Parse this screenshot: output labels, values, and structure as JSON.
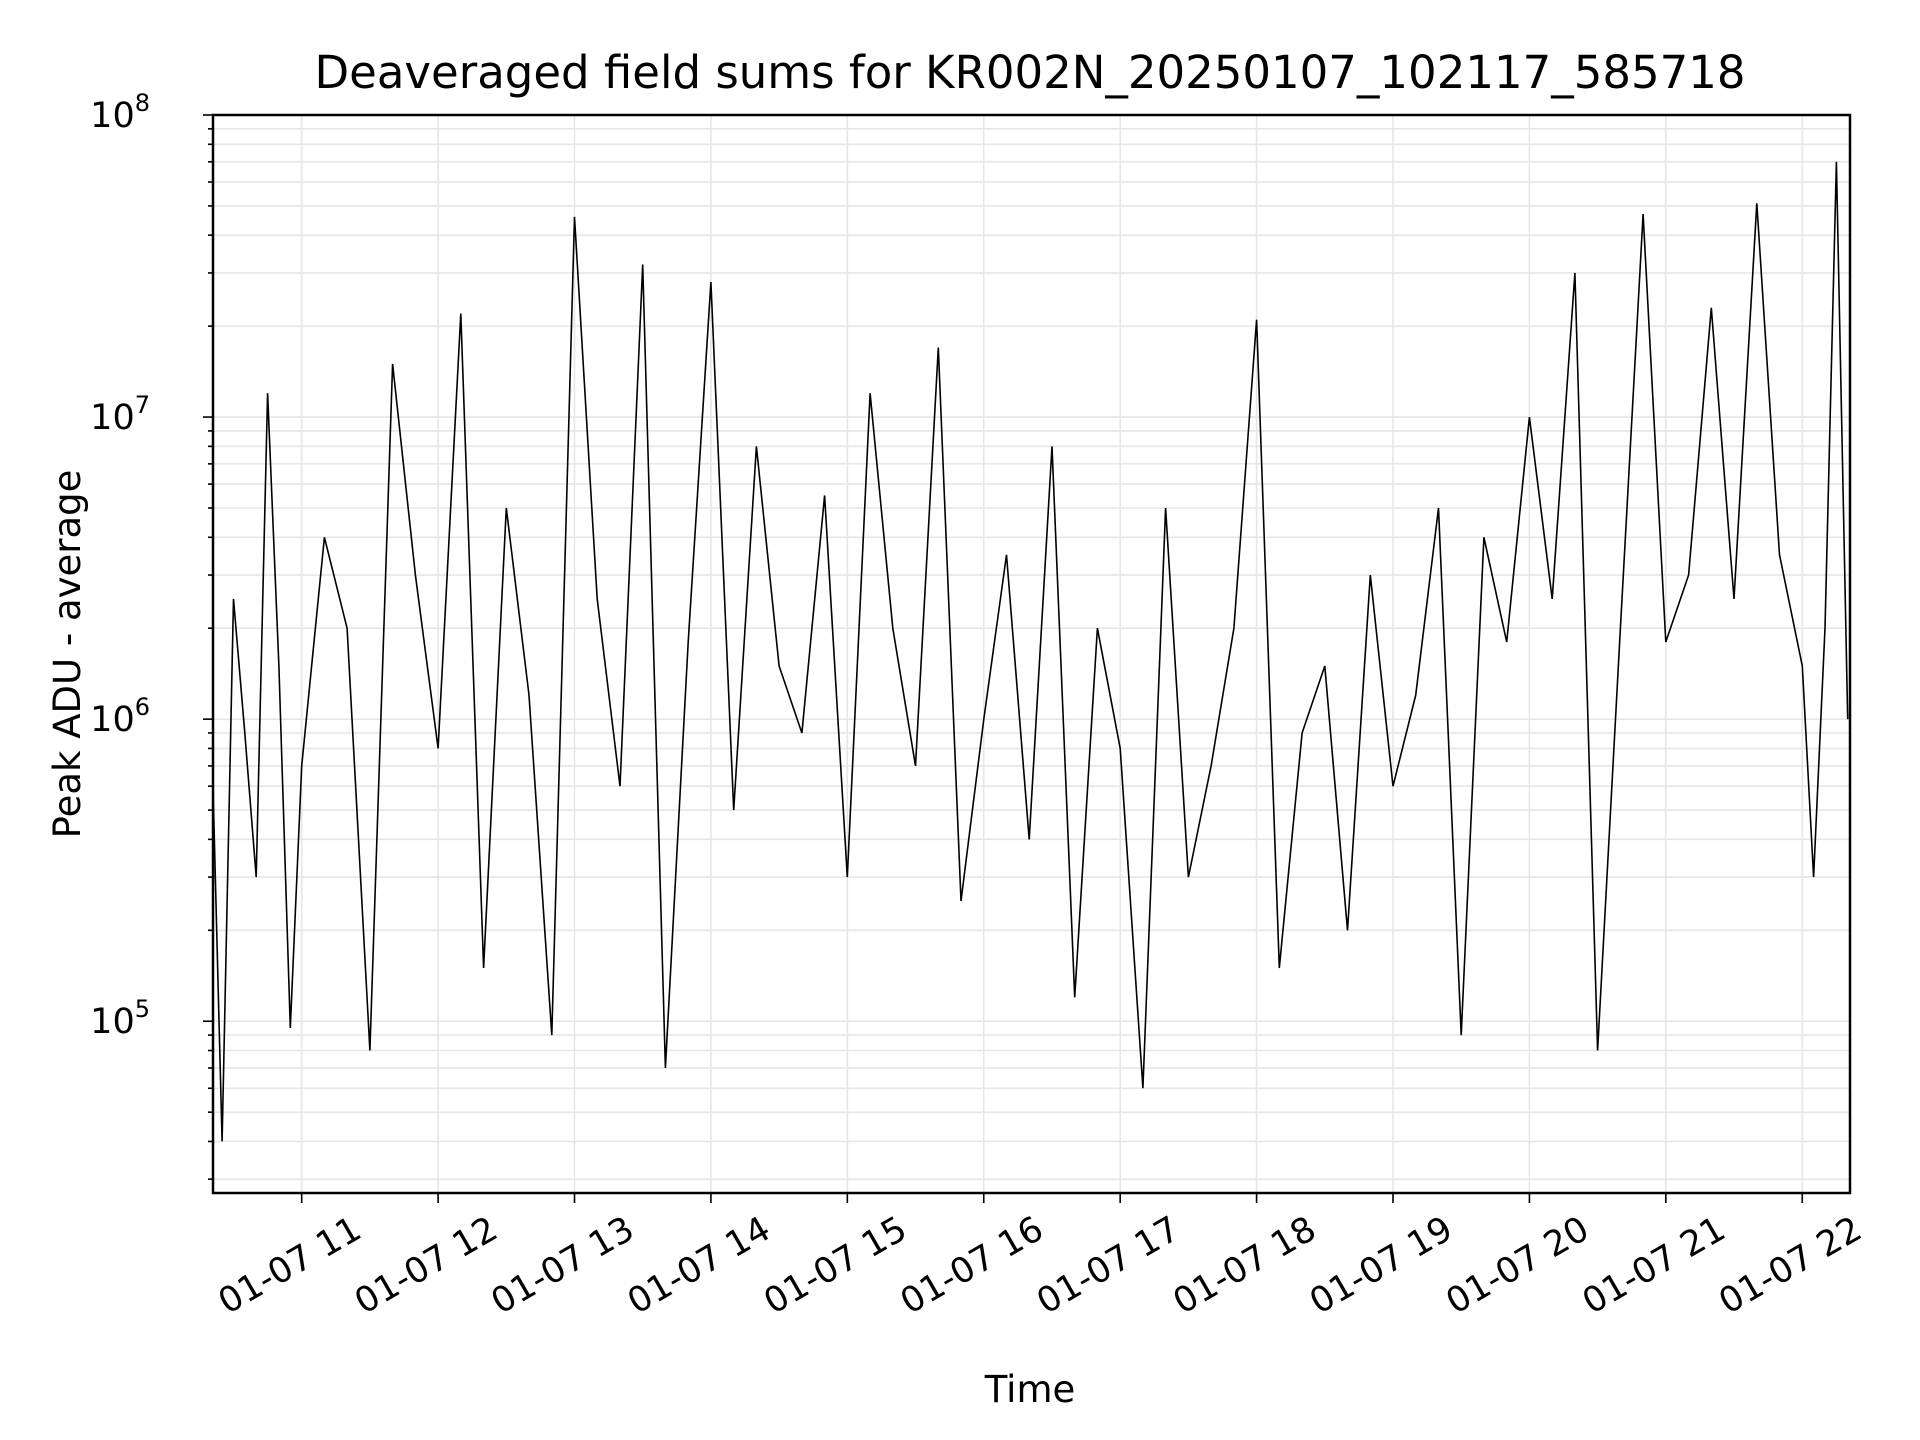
{
  "chart_data": {
    "type": "line",
    "title": "Deaveraged field sums for KR002N_20250107_102117_585718",
    "xlabel": "Time",
    "ylabel": "Peak ADU - average",
    "y_scale": "log",
    "ylim": [
      27000,
      100000000
    ],
    "xlim": [
      "2025-01-07 10:21",
      "2025-01-07 22:21"
    ],
    "grid": true,
    "line_color": "#000000",
    "grid_color": "#e6e6e6",
    "x_ticks": [
      {
        "at": "2025-01-07 11:00",
        "label": "01-07 11"
      },
      {
        "at": "2025-01-07 12:00",
        "label": "01-07 12"
      },
      {
        "at": "2025-01-07 13:00",
        "label": "01-07 13"
      },
      {
        "at": "2025-01-07 14:00",
        "label": "01-07 14"
      },
      {
        "at": "2025-01-07 15:00",
        "label": "01-07 15"
      },
      {
        "at": "2025-01-07 16:00",
        "label": "01-07 16"
      },
      {
        "at": "2025-01-07 17:00",
        "label": "01-07 17"
      },
      {
        "at": "2025-01-07 18:00",
        "label": "01-07 18"
      },
      {
        "at": "2025-01-07 19:00",
        "label": "01-07 19"
      },
      {
        "at": "2025-01-07 20:00",
        "label": "01-07 20"
      },
      {
        "at": "2025-01-07 21:00",
        "label": "01-07 21"
      },
      {
        "at": "2025-01-07 22:00",
        "label": "01-07 22"
      }
    ],
    "y_ticks": [
      {
        "value": 100000,
        "base": "10",
        "exp": "5"
      },
      {
        "value": 1000000,
        "base": "10",
        "exp": "6"
      },
      {
        "value": 10000000,
        "base": "10",
        "exp": "7"
      },
      {
        "value": 100000000,
        "base": "10",
        "exp": "8"
      }
    ],
    "series": [
      {
        "x": [
          "2025-01-07 10:21",
          "2025-01-07 10:25",
          "2025-01-07 10:30",
          "2025-01-07 10:35",
          "2025-01-07 10:40",
          "2025-01-07 10:45",
          "2025-01-07 10:50",
          "2025-01-07 10:55",
          "2025-01-07 11:00",
          "2025-01-07 11:10",
          "2025-01-07 11:20",
          "2025-01-07 11:30",
          "2025-01-07 11:40",
          "2025-01-07 11:50",
          "2025-01-07 12:00",
          "2025-01-07 12:10",
          "2025-01-07 12:20",
          "2025-01-07 12:30",
          "2025-01-07 12:40",
          "2025-01-07 12:50",
          "2025-01-07 13:00",
          "2025-01-07 13:10",
          "2025-01-07 13:20",
          "2025-01-07 13:30",
          "2025-01-07 13:40",
          "2025-01-07 13:50",
          "2025-01-07 14:00",
          "2025-01-07 14:10",
          "2025-01-07 14:20",
          "2025-01-07 14:30",
          "2025-01-07 14:40",
          "2025-01-07 14:50",
          "2025-01-07 15:00",
          "2025-01-07 15:10",
          "2025-01-07 15:20",
          "2025-01-07 15:30",
          "2025-01-07 15:40",
          "2025-01-07 15:50",
          "2025-01-07 16:00",
          "2025-01-07 16:10",
          "2025-01-07 16:20",
          "2025-01-07 16:30",
          "2025-01-07 16:40",
          "2025-01-07 16:50",
          "2025-01-07 17:00",
          "2025-01-07 17:10",
          "2025-01-07 17:20",
          "2025-01-07 17:30",
          "2025-01-07 17:40",
          "2025-01-07 17:50",
          "2025-01-07 18:00",
          "2025-01-07 18:10",
          "2025-01-07 18:20",
          "2025-01-07 18:30",
          "2025-01-07 18:40",
          "2025-01-07 18:50",
          "2025-01-07 19:00",
          "2025-01-07 19:10",
          "2025-01-07 19:20",
          "2025-01-07 19:30",
          "2025-01-07 19:40",
          "2025-01-07 19:50",
          "2025-01-07 20:00",
          "2025-01-07 20:10",
          "2025-01-07 20:20",
          "2025-01-07 20:30",
          "2025-01-07 20:40",
          "2025-01-07 20:50",
          "2025-01-07 21:00",
          "2025-01-07 21:10",
          "2025-01-07 21:20",
          "2025-01-07 21:30",
          "2025-01-07 21:40",
          "2025-01-07 21:50",
          "2025-01-07 22:00",
          "2025-01-07 22:05",
          "2025-01-07 22:10",
          "2025-01-07 22:15",
          "2025-01-07 22:20"
        ],
        "y": [
          600000,
          40000,
          2500000,
          900000,
          300000,
          12000000,
          1500000,
          95000,
          700000,
          4000000,
          2000000,
          80000,
          15000000,
          3000000,
          800000,
          22000000,
          150000,
          5000000,
          1200000,
          90000,
          46000000,
          2500000,
          600000,
          32000000,
          70000,
          1800000,
          28000000,
          500000,
          8000000,
          1500000,
          900000,
          5500000,
          300000,
          12000000,
          2000000,
          700000,
          17000000,
          250000,
          1000000,
          3500000,
          400000,
          8000000,
          120000,
          2000000,
          800000,
          60000,
          5000000,
          300000,
          700000,
          2000000,
          21000000,
          150000,
          900000,
          1500000,
          200000,
          3000000,
          600000,
          1200000,
          5000000,
          90000,
          4000000,
          1800000,
          10000000,
          2500000,
          30000000,
          80000,
          2000000,
          47000000,
          1800000,
          3000000,
          23000000,
          2500000,
          51000000,
          3500000,
          1500000,
          300000,
          2000000,
          70000000,
          1000000
        ]
      }
    ]
  }
}
